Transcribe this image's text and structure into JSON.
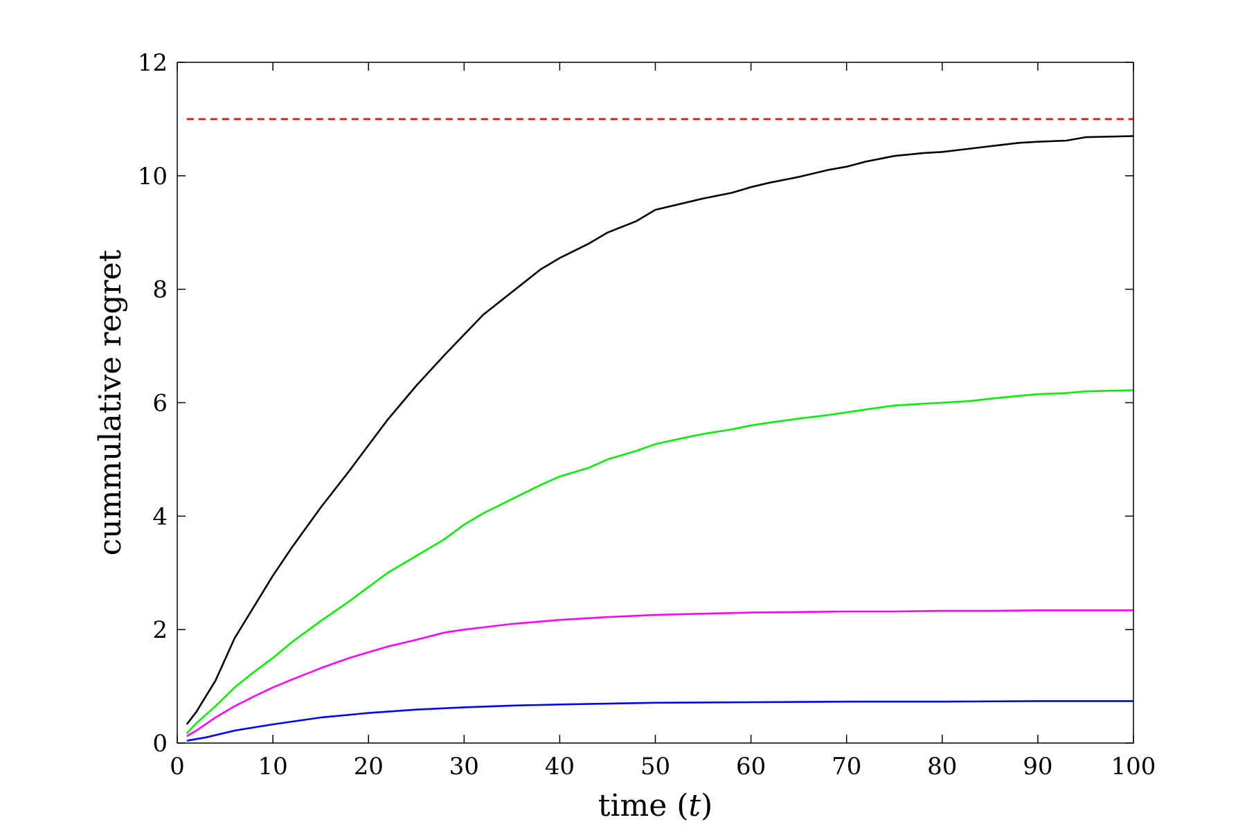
{
  "chart_data": {
    "type": "line",
    "title": "",
    "xlabel_prefix": "time (",
    "xlabel_var": "t",
    "xlabel_suffix": ")",
    "ylabel": "cummulative regret",
    "xlim": [
      0,
      100
    ],
    "ylim": [
      0,
      12
    ],
    "xticks": [
      0,
      10,
      20,
      30,
      40,
      50,
      60,
      70,
      80,
      90,
      100
    ],
    "yticks": [
      0,
      2,
      4,
      6,
      8,
      10,
      12
    ],
    "grid": false,
    "legend": "none",
    "series": [
      {
        "color": "#ff0000",
        "dashed": true,
        "x": [
          1,
          100
        ],
        "y": [
          11.0,
          11.0
        ]
      },
      {
        "color": "#000000",
        "dashed": false,
        "x": [
          1,
          2,
          4,
          6,
          8,
          10,
          12,
          15,
          18,
          20,
          22,
          25,
          28,
          30,
          32,
          35,
          38,
          40,
          43,
          45,
          48,
          50,
          53,
          55,
          58,
          60,
          62,
          65,
          68,
          70,
          72,
          75,
          78,
          80,
          83,
          85,
          88,
          90,
          93,
          95,
          100
        ],
        "y": [
          0.33,
          0.55,
          1.1,
          1.85,
          2.4,
          2.95,
          3.45,
          4.15,
          4.8,
          5.25,
          5.7,
          6.3,
          6.85,
          7.2,
          7.55,
          7.95,
          8.35,
          8.55,
          8.8,
          9.0,
          9.2,
          9.4,
          9.52,
          9.6,
          9.7,
          9.8,
          9.88,
          9.98,
          10.1,
          10.16,
          10.25,
          10.35,
          10.4,
          10.42,
          10.48,
          10.52,
          10.58,
          10.6,
          10.62,
          10.68,
          10.7
        ]
      },
      {
        "color": "#00ee00",
        "dashed": false,
        "x": [
          1,
          2,
          4,
          6,
          8,
          10,
          12,
          15,
          18,
          20,
          22,
          25,
          28,
          30,
          32,
          35,
          38,
          40,
          43,
          45,
          48,
          50,
          53,
          55,
          58,
          60,
          62,
          65,
          68,
          70,
          72,
          75,
          78,
          80,
          83,
          85,
          88,
          90,
          93,
          95,
          100
        ],
        "y": [
          0.17,
          0.35,
          0.65,
          0.98,
          1.25,
          1.5,
          1.78,
          2.15,
          2.5,
          2.75,
          3.0,
          3.3,
          3.6,
          3.85,
          4.05,
          4.3,
          4.55,
          4.7,
          4.85,
          5.0,
          5.15,
          5.27,
          5.38,
          5.45,
          5.53,
          5.6,
          5.65,
          5.72,
          5.78,
          5.83,
          5.88,
          5.95,
          5.98,
          6.0,
          6.03,
          6.07,
          6.12,
          6.15,
          6.17,
          6.2,
          6.22
        ]
      },
      {
        "color": "#ff00ff",
        "dashed": false,
        "x": [
          1,
          2,
          4,
          6,
          8,
          10,
          12,
          15,
          18,
          20,
          22,
          25,
          28,
          30,
          35,
          40,
          45,
          50,
          55,
          60,
          65,
          70,
          75,
          80,
          85,
          90,
          95,
          100
        ],
        "y": [
          0.12,
          0.22,
          0.45,
          0.65,
          0.82,
          0.98,
          1.12,
          1.32,
          1.5,
          1.6,
          1.7,
          1.82,
          1.95,
          2.0,
          2.1,
          2.17,
          2.22,
          2.26,
          2.28,
          2.3,
          2.31,
          2.32,
          2.32,
          2.33,
          2.33,
          2.34,
          2.34,
          2.34
        ]
      },
      {
        "color": "#0000ff",
        "dashed": false,
        "x": [
          1,
          3,
          6,
          10,
          15,
          20,
          25,
          30,
          35,
          40,
          50,
          60,
          70,
          80,
          90,
          100
        ],
        "y": [
          0.04,
          0.1,
          0.22,
          0.33,
          0.45,
          0.53,
          0.59,
          0.63,
          0.66,
          0.68,
          0.71,
          0.72,
          0.73,
          0.73,
          0.74,
          0.74
        ]
      }
    ]
  }
}
